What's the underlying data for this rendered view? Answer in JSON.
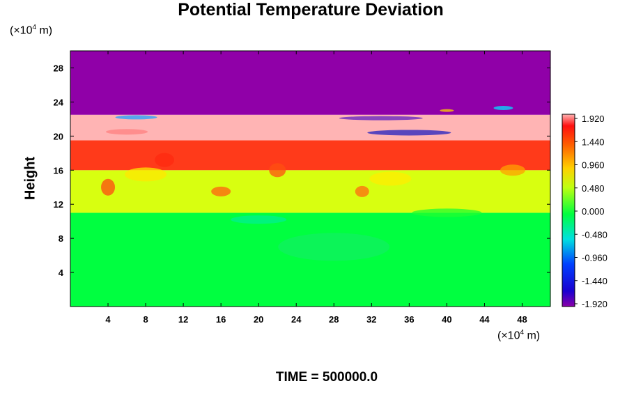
{
  "chart_data": {
    "type": "heatmap",
    "title": "Potential Temperature Deviation",
    "ylabel": "Height",
    "x_unit": "(×10⁴ m)",
    "y_unit": "(×10⁴ m)",
    "x_ticks": [
      4,
      8,
      12,
      16,
      20,
      24,
      28,
      32,
      36,
      40,
      44,
      48
    ],
    "y_ticks": [
      4,
      8,
      12,
      16,
      20,
      24,
      28
    ],
    "xlim": [
      0,
      51
    ],
    "ylim": [
      0,
      30
    ],
    "colorbar": {
      "labels": [
        "1.920",
        "1.440",
        "0.960",
        "0.480",
        "0.000",
        "-0.480",
        "-0.960",
        "-1.440",
        "-1.920"
      ],
      "range": [
        -1.92,
        1.92
      ]
    },
    "bands": [
      {
        "from": 0,
        "to": 11,
        "value": -0.2,
        "color": "#00ff40"
      },
      {
        "from": 11,
        "to": 16,
        "value": 0.5,
        "color": "#d8ff10"
      },
      {
        "from": 16,
        "to": 19.5,
        "value": 1.5,
        "color": "#ff3a1a"
      },
      {
        "from": 19.5,
        "to": 22.5,
        "value": 1.92,
        "color": "#ffb4b4"
      },
      {
        "from": 22.5,
        "to": 30,
        "value": -1.92,
        "color": "#9000a8"
      }
    ],
    "footer": "TIME = 500000.0"
  }
}
